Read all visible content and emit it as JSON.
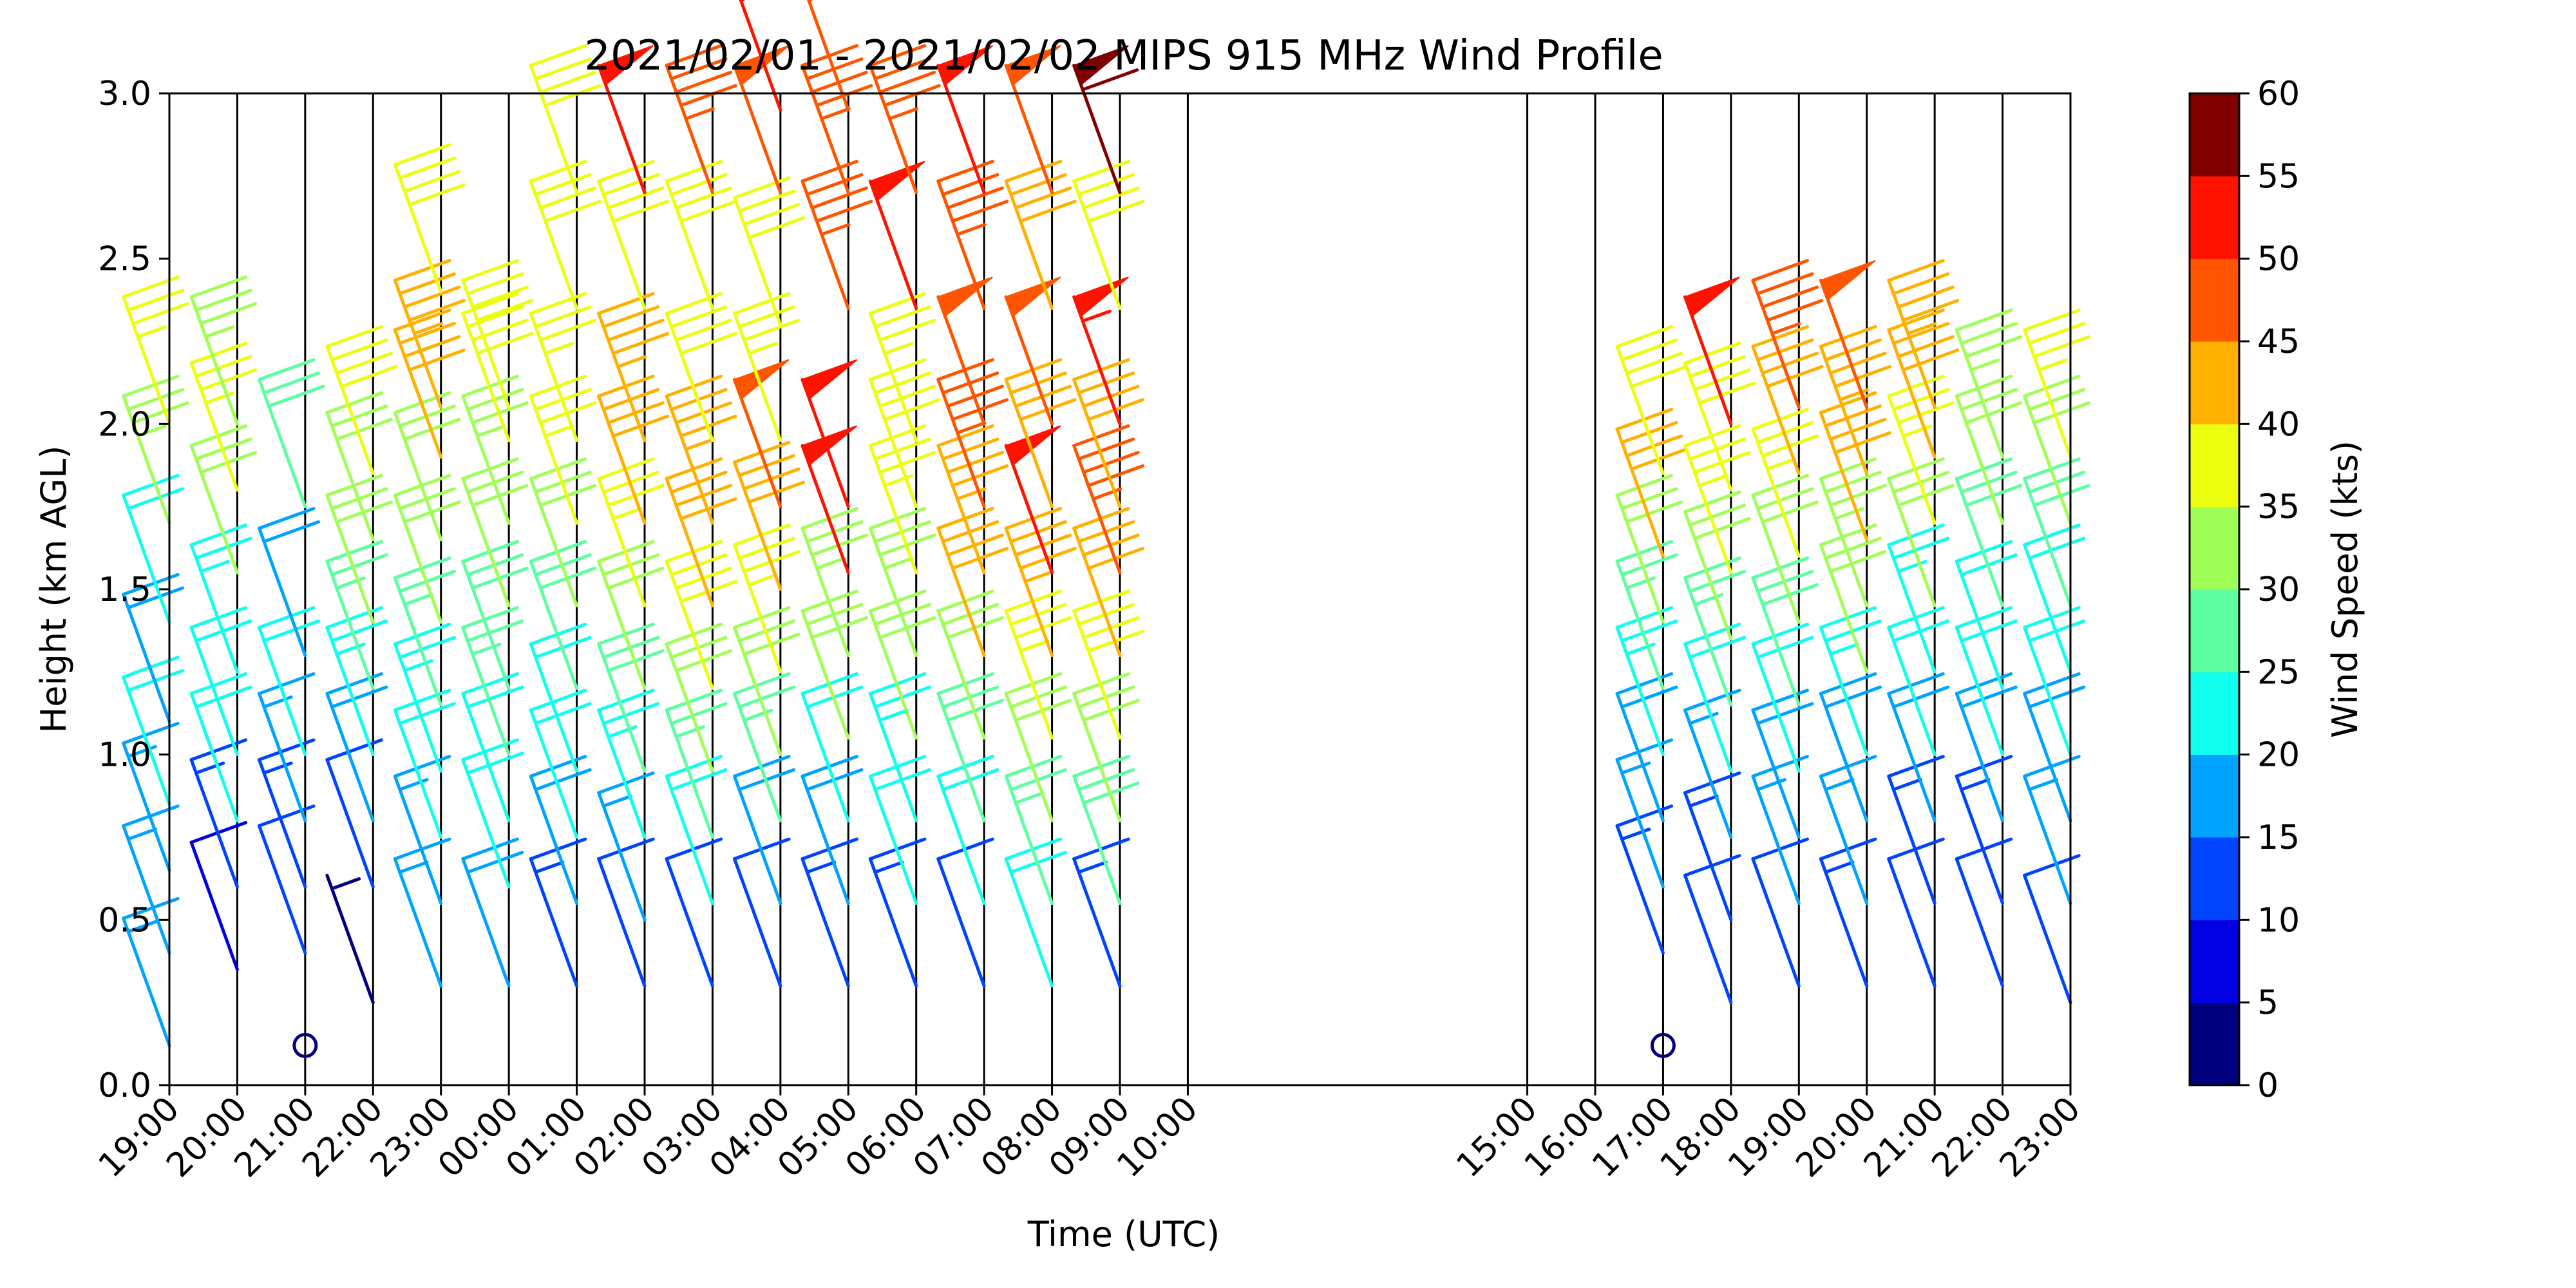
{
  "chart_data": {
    "type": "wind-barb profile",
    "title": "2021/02/01 - 2021/02/02 MIPS 915 MHz Wind Profile",
    "xlabel": "Time (UTC)",
    "ylabel": "Height (km AGL)",
    "ylim": [
      0,
      3.0
    ],
    "xlim_hours": [
      19,
      47
    ],
    "yticks": [
      "0.0",
      "0.5",
      "1.0",
      "1.5",
      "2.0",
      "2.5",
      "3.0"
    ],
    "ytick_values": [
      0,
      0.5,
      1.0,
      1.5,
      2.0,
      2.5,
      3.0
    ],
    "xticks": [
      {
        "t": 19,
        "label": "19:00"
      },
      {
        "t": 20,
        "label": "20:00"
      },
      {
        "t": 21,
        "label": "21:00"
      },
      {
        "t": 22,
        "label": "22:00"
      },
      {
        "t": 23,
        "label": "23:00"
      },
      {
        "t": 24,
        "label": "00:00"
      },
      {
        "t": 25,
        "label": "01:00"
      },
      {
        "t": 26,
        "label": "02:00"
      },
      {
        "t": 27,
        "label": "03:00"
      },
      {
        "t": 28,
        "label": "04:00"
      },
      {
        "t": 29,
        "label": "05:00"
      },
      {
        "t": 30,
        "label": "06:00"
      },
      {
        "t": 31,
        "label": "07:00"
      },
      {
        "t": 32,
        "label": "08:00"
      },
      {
        "t": 33,
        "label": "09:00"
      },
      {
        "t": 34,
        "label": "10:00"
      },
      {
        "t": 39,
        "label": "15:00"
      },
      {
        "t": 40,
        "label": "16:00"
      },
      {
        "t": 41,
        "label": "17:00"
      },
      {
        "t": 42,
        "label": "18:00"
      },
      {
        "t": 43,
        "label": "19:00"
      },
      {
        "t": 44,
        "label": "20:00"
      },
      {
        "t": 45,
        "label": "21:00"
      },
      {
        "t": 46,
        "label": "22:00"
      },
      {
        "t": 47,
        "label": "23:00"
      }
    ],
    "colorbar": {
      "label": "Wind Speed (kts)",
      "ticks": [
        "0",
        "5",
        "10",
        "15",
        "20",
        "25",
        "30",
        "35",
        "40",
        "45",
        "50",
        "55",
        "60"
      ],
      "colors": [
        "#00007f",
        "#0000e3",
        "#0044ff",
        "#00a4ff",
        "#10ffee",
        "#5dffa0",
        "#a0ff56",
        "#ebff0e",
        "#ffb000",
        "#ff5500",
        "#ff1300",
        "#7f0000"
      ]
    },
    "profiles": [
      {
        "t": 19,
        "barbs": [
          [
            0.12,
            15
          ],
          [
            0.4,
            16
          ],
          [
            0.65,
            17
          ],
          [
            0.85,
            20
          ],
          [
            1.1,
            18
          ],
          [
            1.4,
            22
          ],
          [
            1.7,
            33
          ],
          [
            2.0,
            35
          ]
        ]
      },
      {
        "t": 20,
        "barbs": [
          [
            0.35,
            8
          ],
          [
            0.6,
            14
          ],
          [
            0.8,
            20
          ],
          [
            1.0,
            22
          ],
          [
            1.25,
            24
          ],
          [
            1.55,
            30
          ],
          [
            1.8,
            36
          ],
          [
            2.0,
            34
          ]
        ]
      },
      {
        "t": 21,
        "barbs": [
          [
            0.12,
            0
          ],
          [
            0.4,
            10
          ],
          [
            0.6,
            14
          ],
          [
            0.8,
            16
          ],
          [
            1.0,
            20
          ],
          [
            1.3,
            18
          ],
          [
            1.75,
            28
          ]
        ]
      },
      {
        "t": 22,
        "barbs": [
          [
            0.25,
            4
          ],
          [
            0.6,
            12
          ],
          [
            0.8,
            18
          ],
          [
            1.0,
            24
          ],
          [
            1.2,
            26
          ],
          [
            1.4,
            32
          ],
          [
            1.65,
            30
          ],
          [
            1.85,
            38
          ]
        ]
      },
      {
        "t": 23,
        "barbs": [
          [
            0.3,
            16
          ],
          [
            0.55,
            16
          ],
          [
            0.75,
            20
          ],
          [
            0.95,
            24
          ],
          [
            1.15,
            26
          ],
          [
            1.4,
            30
          ],
          [
            1.65,
            32
          ],
          [
            1.9,
            40
          ],
          [
            2.05,
            44
          ],
          [
            2.4,
            38
          ]
        ]
      },
      {
        "t": 24,
        "barbs": [
          [
            0.3,
            18
          ],
          [
            0.6,
            20
          ],
          [
            0.8,
            22
          ],
          [
            1.0,
            26
          ],
          [
            1.2,
            28
          ],
          [
            1.45,
            32
          ],
          [
            1.7,
            34
          ],
          [
            1.95,
            38
          ],
          [
            2.05,
            38
          ]
        ]
      },
      {
        "t": 25,
        "barbs": [
          [
            0.3,
            14
          ],
          [
            0.55,
            18
          ],
          [
            0.75,
            20
          ],
          [
            0.95,
            22
          ],
          [
            1.2,
            28
          ],
          [
            1.45,
            32
          ],
          [
            1.7,
            36
          ],
          [
            1.95,
            36
          ],
          [
            2.35,
            38
          ],
          [
            2.7,
            38
          ]
        ]
      },
      {
        "t": 26,
        "barbs": [
          [
            0.3,
            12
          ],
          [
            0.5,
            16
          ],
          [
            0.75,
            24
          ],
          [
            0.95,
            28
          ],
          [
            1.2,
            32
          ],
          [
            1.45,
            36
          ],
          [
            1.7,
            40
          ],
          [
            1.95,
            44
          ],
          [
            2.35,
            38
          ],
          [
            2.7,
            52
          ]
        ]
      },
      {
        "t": 27,
        "barbs": [
          [
            0.3,
            12
          ],
          [
            0.55,
            20
          ],
          [
            0.75,
            26
          ],
          [
            0.95,
            30
          ],
          [
            1.2,
            38
          ],
          [
            1.45,
            42
          ],
          [
            1.7,
            44
          ],
          [
            1.95,
            38
          ],
          [
            2.35,
            38
          ],
          [
            2.7,
            46
          ]
        ]
      },
      {
        "t": 28,
        "barbs": [
          [
            0.3,
            12
          ],
          [
            0.55,
            18
          ],
          [
            0.8,
            26
          ],
          [
            1.0,
            30
          ],
          [
            1.25,
            36
          ],
          [
            1.5,
            40
          ],
          [
            1.75,
            48
          ],
          [
            1.95,
            36
          ],
          [
            2.3,
            38
          ],
          [
            2.7,
            48
          ],
          [
            2.95,
            52
          ]
        ]
      },
      {
        "t": 29,
        "barbs": [
          [
            0.3,
            14
          ],
          [
            0.55,
            18
          ],
          [
            0.8,
            22
          ],
          [
            1.05,
            30
          ],
          [
            1.3,
            34
          ],
          [
            1.55,
            50
          ],
          [
            1.75,
            52
          ],
          [
            2.35,
            46
          ],
          [
            2.7,
            46
          ],
          [
            2.95,
            48
          ]
        ]
      },
      {
        "t": 30,
        "barbs": [
          [
            0.3,
            14
          ],
          [
            0.55,
            20
          ],
          [
            0.8,
            24
          ],
          [
            1.05,
            30
          ],
          [
            1.3,
            34
          ],
          [
            1.55,
            36
          ],
          [
            1.75,
            38
          ],
          [
            1.95,
            36
          ],
          [
            2.35,
            52
          ],
          [
            2.7,
            46
          ]
        ]
      },
      {
        "t": 31,
        "barbs": [
          [
            0.3,
            12
          ],
          [
            0.55,
            20
          ],
          [
            0.8,
            28
          ],
          [
            1.05,
            32
          ],
          [
            1.3,
            42
          ],
          [
            1.55,
            44
          ],
          [
            1.75,
            46
          ],
          [
            2.0,
            48
          ],
          [
            2.35,
            46
          ],
          [
            2.7,
            52
          ]
        ]
      },
      {
        "t": 32,
        "barbs": [
          [
            0.3,
            22
          ],
          [
            0.55,
            26
          ],
          [
            0.8,
            32
          ],
          [
            1.05,
            36
          ],
          [
            1.3,
            44
          ],
          [
            1.55,
            50
          ],
          [
            1.75,
            40
          ],
          [
            2.0,
            48
          ],
          [
            2.35,
            40
          ],
          [
            2.7,
            48
          ]
        ]
      },
      {
        "t": 33,
        "barbs": [
          [
            0.3,
            14
          ],
          [
            0.55,
            28
          ],
          [
            0.8,
            32
          ],
          [
            1.05,
            38
          ],
          [
            1.3,
            42
          ],
          [
            1.55,
            46
          ],
          [
            1.75,
            40
          ],
          [
            2.0,
            54
          ],
          [
            2.35,
            38
          ],
          [
            2.7,
            58
          ]
        ]
      },
      {
        "t": 41,
        "barbs": [
          [
            0.12,
            0
          ],
          [
            0.4,
            14
          ],
          [
            0.6,
            16
          ],
          [
            0.8,
            18
          ],
          [
            1.0,
            24
          ],
          [
            1.2,
            26
          ],
          [
            1.4,
            32
          ],
          [
            1.6,
            40
          ],
          [
            1.85,
            38
          ]
        ]
      },
      {
        "t": 42,
        "barbs": [
          [
            0.25,
            10
          ],
          [
            0.5,
            14
          ],
          [
            0.75,
            16
          ],
          [
            0.95,
            22
          ],
          [
            1.15,
            26
          ],
          [
            1.35,
            32
          ],
          [
            1.55,
            36
          ],
          [
            1.8,
            38
          ],
          [
            2.0,
            52
          ]
        ]
      },
      {
        "t": 43,
        "barbs": [
          [
            0.3,
            12
          ],
          [
            0.55,
            16
          ],
          [
            0.75,
            18
          ],
          [
            0.95,
            22
          ],
          [
            1.15,
            28
          ],
          [
            1.4,
            32
          ],
          [
            1.6,
            36
          ],
          [
            1.85,
            40
          ],
          [
            2.05,
            46
          ]
        ]
      },
      {
        "t": 44,
        "barbs": [
          [
            0.3,
            14
          ],
          [
            0.55,
            16
          ],
          [
            0.8,
            18
          ],
          [
            1.0,
            24
          ],
          [
            1.25,
            30
          ],
          [
            1.45,
            34
          ],
          [
            1.65,
            40
          ],
          [
            1.85,
            44
          ],
          [
            2.05,
            48
          ]
        ]
      },
      {
        "t": 45,
        "barbs": [
          [
            0.3,
            12
          ],
          [
            0.55,
            14
          ],
          [
            0.8,
            18
          ],
          [
            1.0,
            20
          ],
          [
            1.25,
            24
          ],
          [
            1.45,
            30
          ],
          [
            1.7,
            36
          ],
          [
            1.9,
            40
          ],
          [
            2.05,
            44
          ]
        ]
      },
      {
        "t": 46,
        "barbs": [
          [
            0.3,
            10
          ],
          [
            0.55,
            14
          ],
          [
            0.8,
            18
          ],
          [
            1.0,
            20
          ],
          [
            1.2,
            22
          ],
          [
            1.45,
            28
          ],
          [
            1.7,
            32
          ],
          [
            1.9,
            34
          ]
        ]
      },
      {
        "t": 47,
        "barbs": [
          [
            0.25,
            12
          ],
          [
            0.55,
            16
          ],
          [
            0.8,
            18
          ],
          [
            1.0,
            20
          ],
          [
            1.25,
            22
          ],
          [
            1.45,
            28
          ],
          [
            1.7,
            32
          ],
          [
            1.9,
            36
          ]
        ]
      }
    ]
  }
}
